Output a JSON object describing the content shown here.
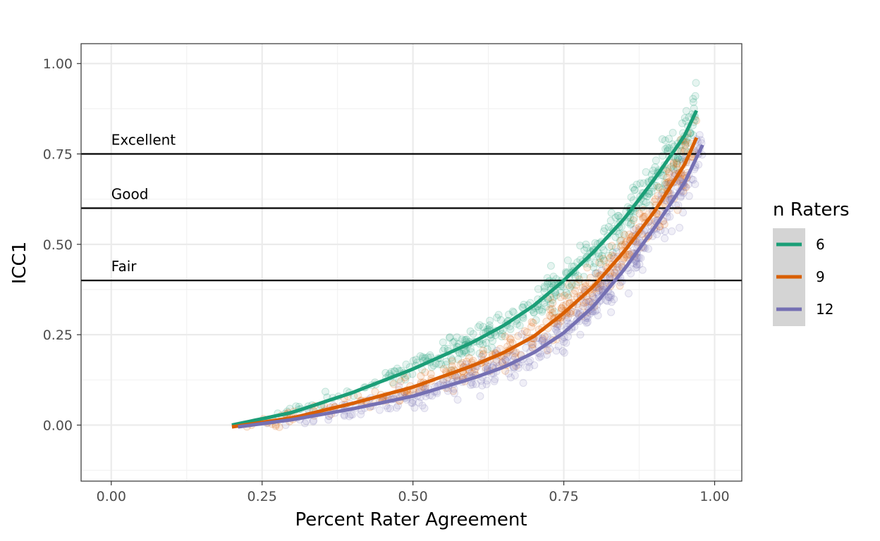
{
  "chart_data": {
    "type": "scatter",
    "xlabel": "Percent Rater Agreement",
    "ylabel": "ICC1",
    "xlim": [
      -0.05,
      1.045
    ],
    "ylim": [
      -0.155,
      1.055
    ],
    "x_ticks": [
      0.0,
      0.25,
      0.5,
      0.75,
      1.0
    ],
    "x_tick_labels": [
      "0.00",
      "0.25",
      "0.50",
      "0.75",
      "1.00"
    ],
    "y_ticks": [
      0.0,
      0.25,
      0.5,
      0.75,
      1.0
    ],
    "y_tick_labels": [
      "0.00",
      "0.25",
      "0.50",
      "0.75",
      "1.00"
    ],
    "grid": true,
    "legend": {
      "title": "n Raters",
      "position": "right"
    },
    "reference_lines": [
      {
        "label": "Excellent",
        "y": 0.75
      },
      {
        "label": "Good",
        "y": 0.6
      },
      {
        "label": "Fair",
        "y": 0.4
      }
    ],
    "series": [
      {
        "name": "6",
        "color": "#1B9E77",
        "curve": {
          "x": [
            0.2,
            0.3,
            0.4,
            0.5,
            0.6,
            0.65,
            0.7,
            0.75,
            0.8,
            0.85,
            0.9,
            0.95,
            0.97
          ],
          "y": [
            0.0,
            0.035,
            0.09,
            0.155,
            0.23,
            0.275,
            0.33,
            0.4,
            0.48,
            0.57,
            0.68,
            0.8,
            0.87
          ]
        },
        "points_summary": "translucent scatter around the fitted curve, x from about 0.21 to 0.97"
      },
      {
        "name": "9",
        "color": "#D95F02",
        "curve": {
          "x": [
            0.2,
            0.3,
            0.4,
            0.5,
            0.6,
            0.65,
            0.7,
            0.75,
            0.8,
            0.85,
            0.9,
            0.95,
            0.97
          ],
          "y": [
            -0.005,
            0.02,
            0.06,
            0.105,
            0.165,
            0.2,
            0.245,
            0.31,
            0.385,
            0.48,
            0.59,
            0.72,
            0.795
          ]
        },
        "points_summary": "translucent scatter around the fitted curve, x from about 0.21 to 0.97"
      },
      {
        "name": "12",
        "color": "#7570B3",
        "curve": {
          "x": [
            0.21,
            0.3,
            0.4,
            0.5,
            0.6,
            0.65,
            0.7,
            0.75,
            0.8,
            0.85,
            0.9,
            0.95,
            0.98
          ],
          "y": [
            -0.005,
            0.015,
            0.045,
            0.08,
            0.13,
            0.16,
            0.2,
            0.255,
            0.33,
            0.43,
            0.545,
            0.67,
            0.775
          ]
        },
        "points_summary": "translucent scatter around the fitted curve, x from about 0.21 to 0.98"
      }
    ]
  }
}
